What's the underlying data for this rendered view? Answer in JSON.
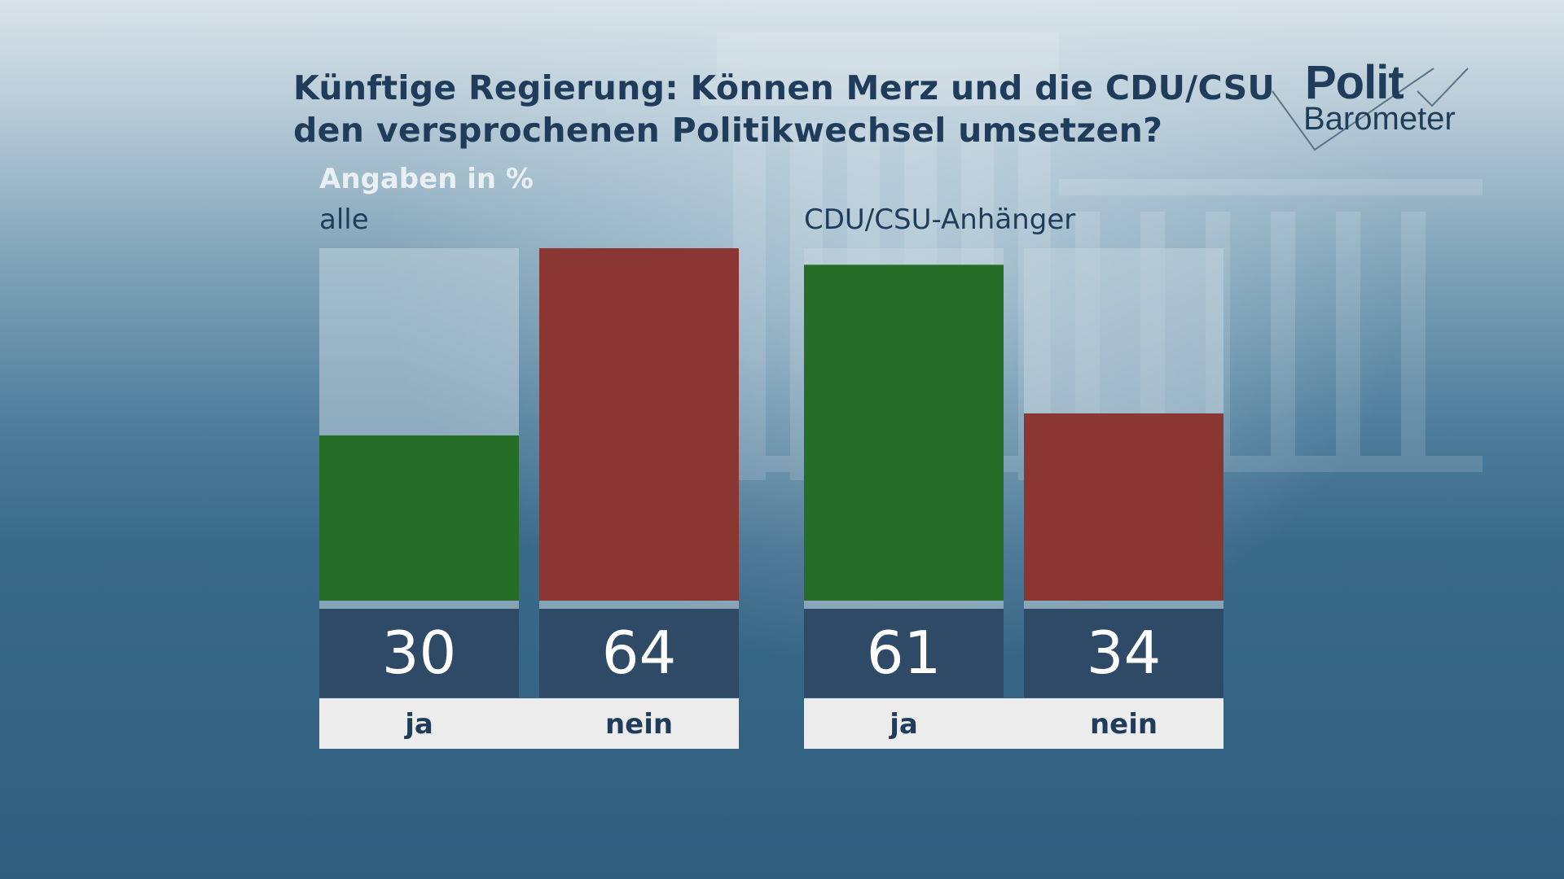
{
  "title": {
    "line1": "Künftige Regierung: Können Merz und die CDU/CSU",
    "line2": "den versprochenen Politikwechsel umsetzen?"
  },
  "logo": {
    "line1": "Polit",
    "line2": "Barometer"
  },
  "subtitle": "Angaben in %",
  "colors": {
    "ja": "#266d27",
    "nein": "#8a3734",
    "track": "#c3d3dc",
    "value_box": "#2f4a66",
    "label_box": "#ececec"
  },
  "chart_data": [
    {
      "type": "bar",
      "group": "alle",
      "categories": [
        "ja",
        "nein"
      ],
      "values": [
        30,
        64
      ],
      "ylim": [
        0,
        64
      ]
    },
    {
      "type": "bar",
      "group": "CDU/CSU-Anhänger",
      "categories": [
        "ja",
        "nein"
      ],
      "values": [
        61,
        34
      ],
      "ylim": [
        0,
        64
      ]
    }
  ]
}
